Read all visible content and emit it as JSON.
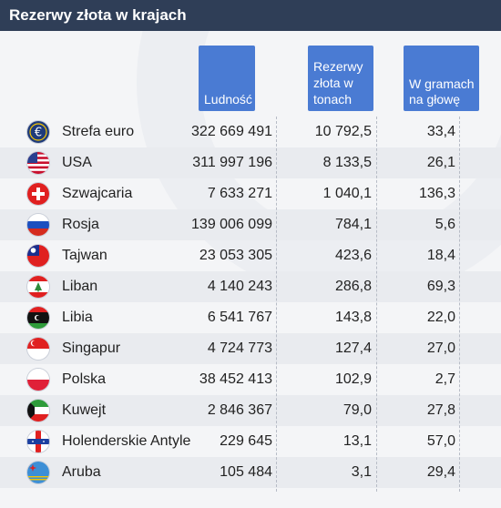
{
  "title": "Rezerwy złota w krajach",
  "chart_data": {
    "type": "table",
    "columns": [
      {
        "key": "population",
        "label": "Ludność"
      },
      {
        "key": "gold_tonnes",
        "label": "Rezerwy złota w tonach"
      },
      {
        "key": "grams_per_capita",
        "label": "W gramach na głowę"
      }
    ],
    "rows": [
      {
        "country": "Strefa euro",
        "flag": "euro-flag-icon",
        "population": "322 669 491",
        "gold_tonnes": "10 792,5",
        "grams_per_capita": "33,4"
      },
      {
        "country": "USA",
        "flag": "usa-flag-icon",
        "population": "311 997 196",
        "gold_tonnes": "8 133,5",
        "grams_per_capita": "26,1"
      },
      {
        "country": "Szwajcaria",
        "flag": "switzerland-flag-icon",
        "population": "7 633 271",
        "gold_tonnes": "1 040,1",
        "grams_per_capita": "136,3"
      },
      {
        "country": "Rosja",
        "flag": "russia-flag-icon",
        "population": "139 006 099",
        "gold_tonnes": "784,1",
        "grams_per_capita": "5,6"
      },
      {
        "country": "Tajwan",
        "flag": "taiwan-flag-icon",
        "population": "23 053 305",
        "gold_tonnes": "423,6",
        "grams_per_capita": "18,4"
      },
      {
        "country": "Liban",
        "flag": "lebanon-flag-icon",
        "population": "4 140 243",
        "gold_tonnes": "286,8",
        "grams_per_capita": "69,3"
      },
      {
        "country": "Libia",
        "flag": "libya-flag-icon",
        "population": "6 541 767",
        "gold_tonnes": "143,8",
        "grams_per_capita": "22,0"
      },
      {
        "country": "Singapur",
        "flag": "singapore-flag-icon",
        "population": "4 724 773",
        "gold_tonnes": "127,4",
        "grams_per_capita": "27,0"
      },
      {
        "country": "Polska",
        "flag": "poland-flag-icon",
        "population": "38 452 413",
        "gold_tonnes": "102,9",
        "grams_per_capita": "2,7"
      },
      {
        "country": "Kuwejt",
        "flag": "kuwait-flag-icon",
        "population": "2 846 367",
        "gold_tonnes": "79,0",
        "grams_per_capita": "27,8"
      },
      {
        "country": "Holenderskie Antyle",
        "flag": "netherlands-antilles-flag-icon",
        "population": "229 645",
        "gold_tonnes": "13,1",
        "grams_per_capita": "57,0"
      },
      {
        "country": "Aruba",
        "flag": "aruba-flag-icon",
        "population": "105 484",
        "gold_tonnes": "3,1",
        "grams_per_capita": "29,4"
      }
    ]
  },
  "colors": {
    "title_bar": "#2f3e57",
    "header_box": "#4a7bd3",
    "row_stripe": "#e9ebef"
  }
}
